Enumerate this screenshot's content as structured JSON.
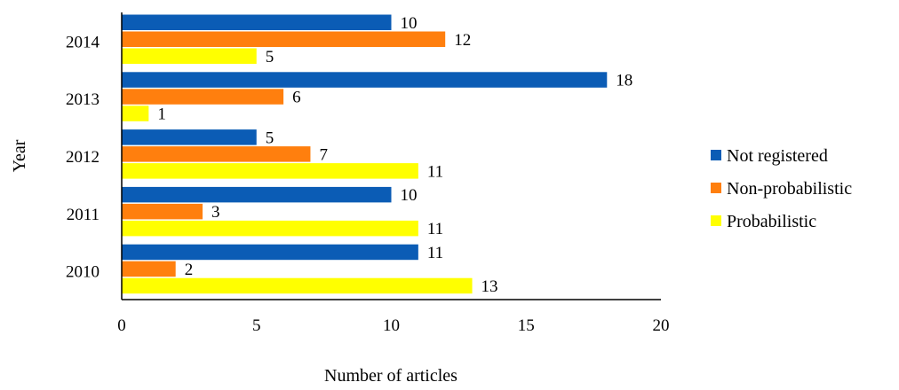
{
  "chart_data": {
    "type": "bar",
    "orientation": "horizontal",
    "categories": [
      "2014",
      "2013",
      "2012",
      "2011",
      "2010"
    ],
    "series": [
      {
        "name": "Not registered",
        "color": "#0b5cb5",
        "values": [
          10,
          18,
          5,
          10,
          11
        ]
      },
      {
        "name": "Non-probabilistic",
        "color": "#ff7f0e",
        "values": [
          12,
          6,
          7,
          3,
          2
        ]
      },
      {
        "name": "Probabilistic",
        "color": "#ffff00",
        "values": [
          5,
          1,
          11,
          11,
          13
        ]
      }
    ],
    "xlabel": "Number of articles",
    "ylabel": "Year",
    "xlim": [
      0,
      20
    ],
    "xticks": [
      "0",
      "5",
      "10",
      "15",
      "20"
    ],
    "grid": false,
    "legend_position": "right",
    "data_labels": true
  }
}
